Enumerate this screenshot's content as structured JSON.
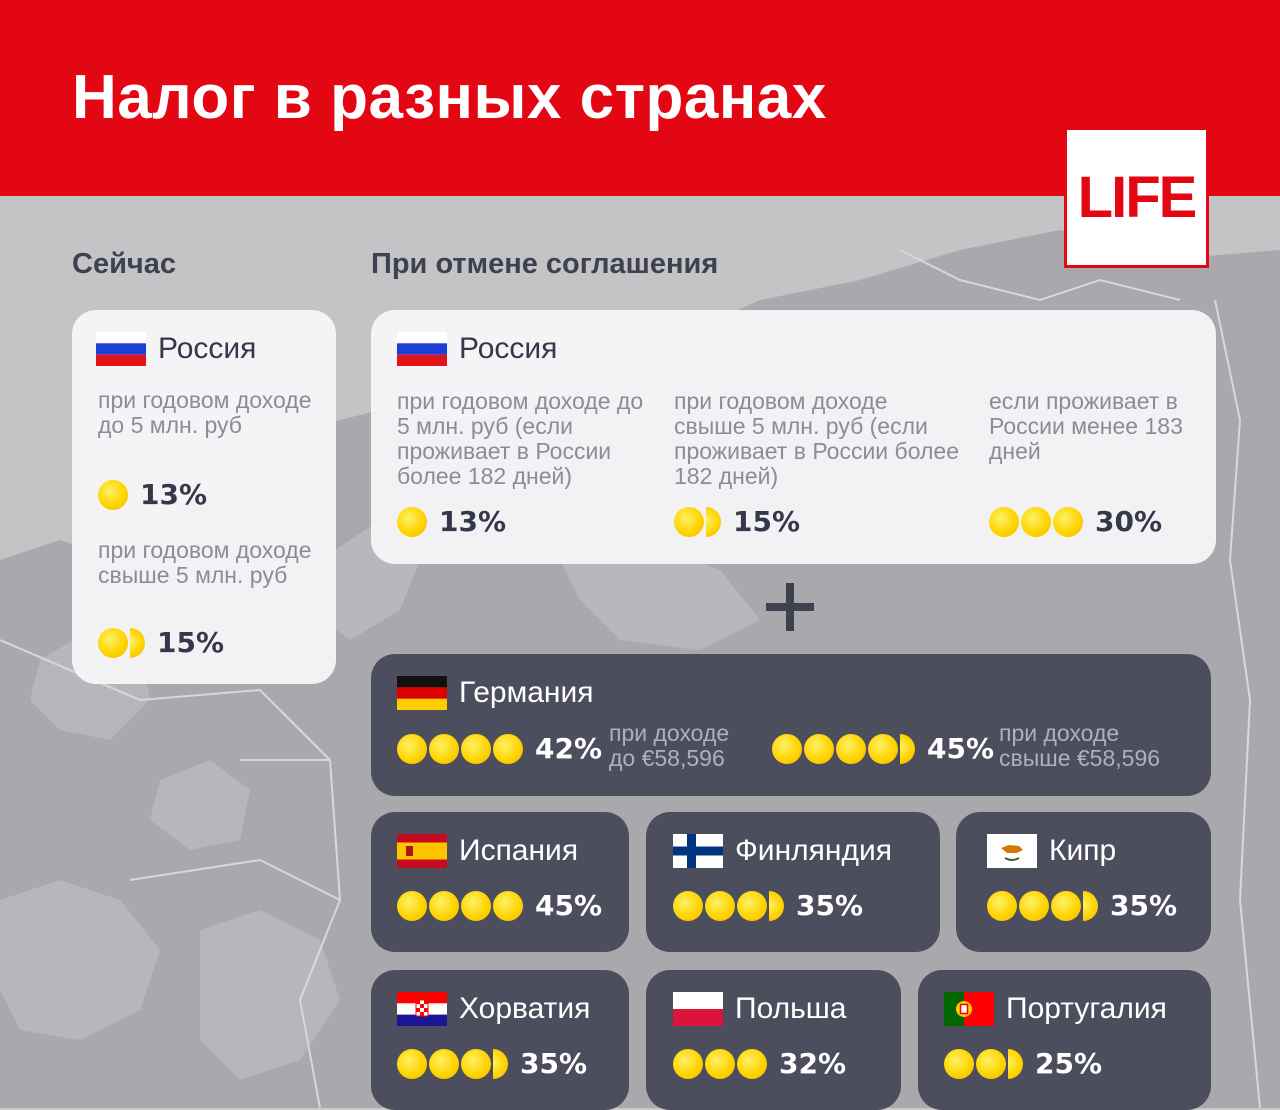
{
  "header": {
    "title": "Налог в разных странах",
    "brand": "LIFE",
    "bg_color": "#e30613"
  },
  "sections": {
    "now": "Сейчас",
    "cancel": "При отмене соглашения"
  },
  "now_card": {
    "country": "Россия",
    "flag": "russia-flag",
    "rates": [
      {
        "note": "при годовом доходе до 5 млн. руб",
        "coins": 1,
        "value": "13%"
      },
      {
        "note": "при годовом доходе свыше 5 млн. руб",
        "coins": 1.5,
        "value": "15%"
      }
    ]
  },
  "cancel_russia": {
    "country": "Россия",
    "flag": "russia-flag",
    "rates": [
      {
        "note": "при годовом доходе до 5 млн. руб (если проживает в России более 182 дней)",
        "coins": 1,
        "value": "13%"
      },
      {
        "note": "при годовом доходе свыше 5 млн. руб (если проживает в России более 182 дней)",
        "coins": 1.5,
        "value": "15%"
      },
      {
        "note": "если проживает в России менее 183 дней",
        "coins": 3,
        "value": "30%"
      }
    ]
  },
  "germany": {
    "country": "Германия",
    "flag": "germany-flag",
    "rates": [
      {
        "value": "42%",
        "coins": 4,
        "note": "при доходе до €58,596"
      },
      {
        "value": "45%",
        "coins": 4.5,
        "note": "при доходе свыше €58,596"
      }
    ]
  },
  "countries": [
    {
      "country": "Испания",
      "flag": "spain-flag",
      "coins": 4,
      "value": "45%"
    },
    {
      "country": "Финляндия",
      "flag": "finland-flag",
      "coins": 3.5,
      "value": "35%"
    },
    {
      "country": "Кипр",
      "flag": "cyprus-flag",
      "coins": 3.5,
      "value": "35%"
    },
    {
      "country": "Хорватия",
      "flag": "croatia-flag",
      "coins": 3.5,
      "value": "35%"
    },
    {
      "country": "Польша",
      "flag": "poland-flag",
      "coins": 3,
      "value": "32%"
    },
    {
      "country": "Португалия",
      "flag": "portugal-flag",
      "coins": 2.5,
      "value": "25%"
    }
  ],
  "colors": {
    "accent": "#e30613",
    "coin": "#ffd400",
    "dark_card": "#4c4e5e",
    "light_card": "#f8f8fa",
    "text_dark": "#35374a"
  }
}
